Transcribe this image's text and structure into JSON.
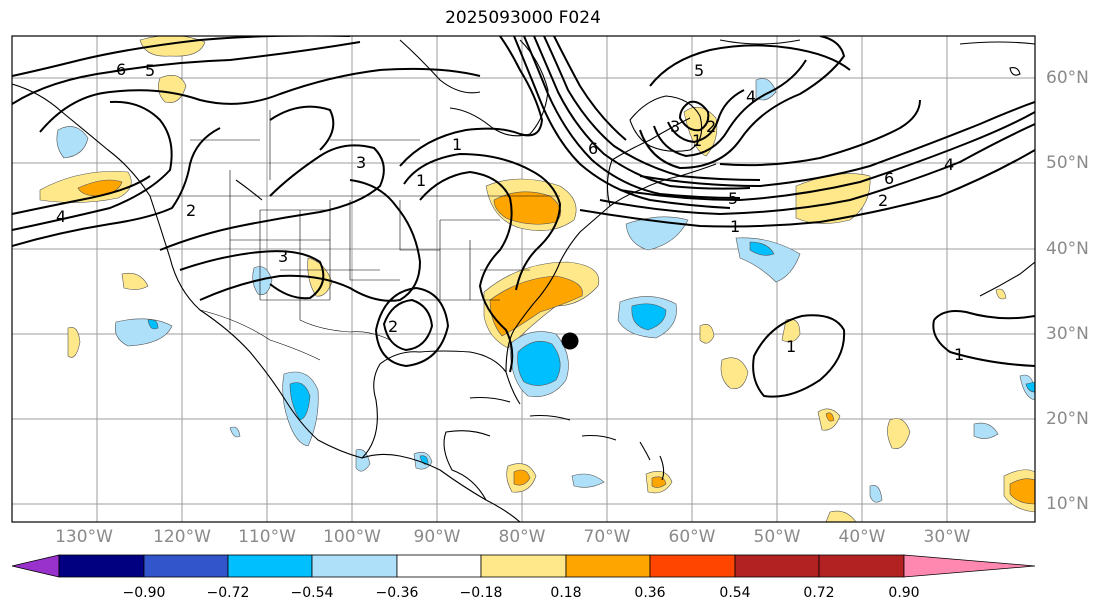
{
  "title": "2025093000 F024",
  "lon_labels": [
    "130°W",
    "120°W",
    "110°W",
    "100°W",
    "90°W",
    "80°W",
    "70°W",
    "60°W",
    "50°W",
    "40°W",
    "30°W"
  ],
  "lat_labels": [
    "60°N",
    "50°N",
    "40°N",
    "30°N",
    "20°N",
    "10°N"
  ],
  "colorbar": {
    "ticks": [
      "−0.90",
      "−0.72",
      "−0.54",
      "−0.36",
      "−0.18",
      "0.18",
      "0.36",
      "0.54",
      "0.72",
      "0.90"
    ],
    "colors": [
      "#9932cc",
      "#000080",
      "#3355cc",
      "#00bfff",
      "#aee0fa",
      "#ffffff",
      "#ffe88a",
      "#ffa500",
      "#ff4500",
      "#b22222",
      "#ff88b0"
    ]
  },
  "contour_labels": [
    "6",
    "5",
    "4",
    "2",
    "3",
    "1",
    "3",
    "2",
    "1",
    "6",
    "5",
    "4",
    "3",
    "2",
    "1",
    "6",
    "5",
    "4",
    "2",
    "1",
    "1",
    "1"
  ],
  "marker": "storm-center-dot"
}
